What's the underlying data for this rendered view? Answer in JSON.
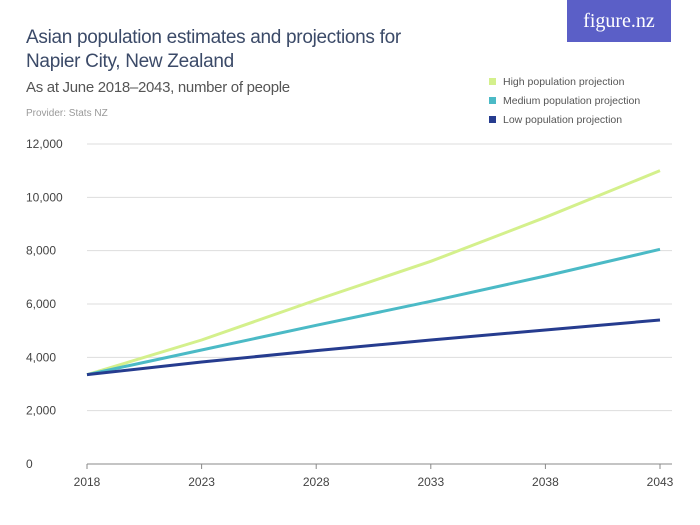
{
  "chart_data": {
    "type": "line",
    "title": "Asian population estimates and projections for Napier City, New Zealand",
    "subtitle": "As at June 2018–2043, number of people",
    "provider": "Provider: Stats NZ",
    "x": [
      2018,
      2023,
      2028,
      2033,
      2038,
      2043
    ],
    "xticks": [
      "2018",
      "2023",
      "2028",
      "2033",
      "2038",
      "2043"
    ],
    "yticks": [
      "0",
      "2,000",
      "4,000",
      "6,000",
      "8,000",
      "10,000",
      "12,000"
    ],
    "ylim": [
      0,
      12000
    ],
    "grid": true,
    "legend_placement": "top-right",
    "series": [
      {
        "name": "High population projection",
        "color": "#d4f08c",
        "values": [
          3350,
          4650,
          6150,
          7600,
          9250,
          11000
        ]
      },
      {
        "name": "Medium population projection",
        "color": "#4bbac6",
        "values": [
          3350,
          4275,
          5200,
          6100,
          7050,
          8050
        ]
      },
      {
        "name": "Low population projection",
        "color": "#263c8f",
        "values": [
          3350,
          3825,
          4250,
          4650,
          5025,
          5400
        ]
      }
    ]
  },
  "logo": "figure.nz"
}
